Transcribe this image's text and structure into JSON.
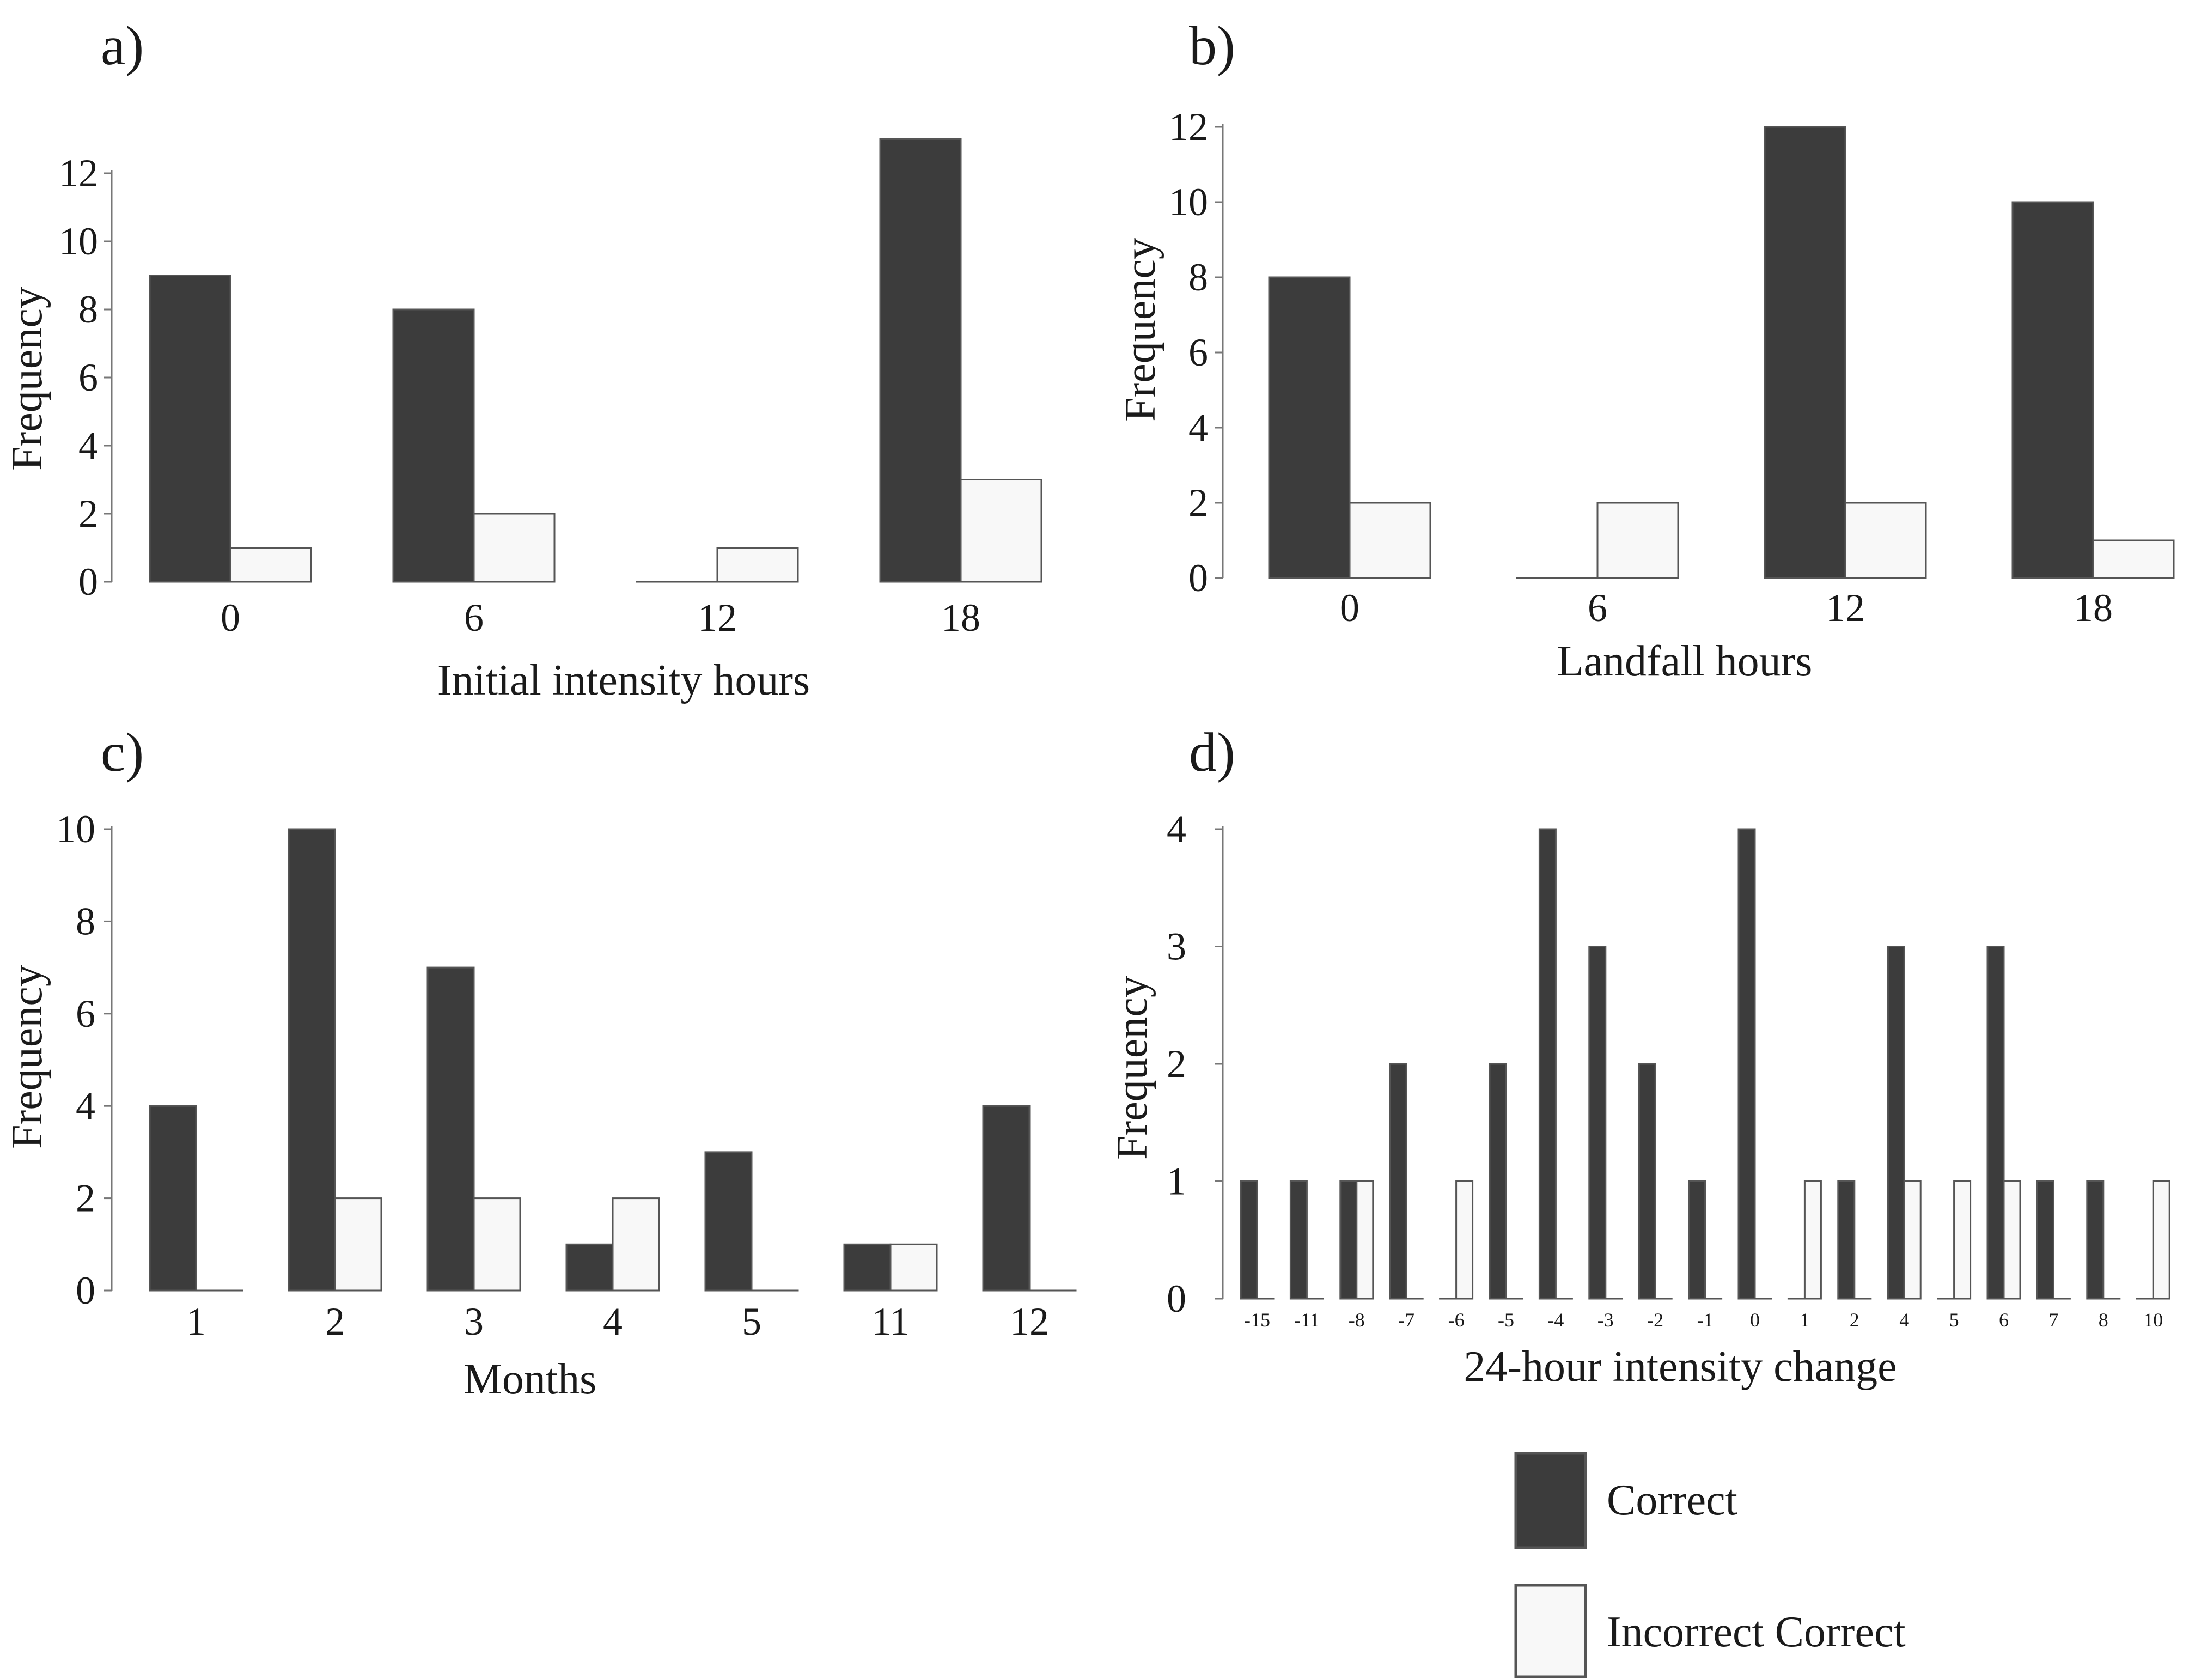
{
  "colors": {
    "correct": "#3c3c3c",
    "incorrect": "#f8f8f8",
    "stroke": "#555555"
  },
  "legend": {
    "items": [
      {
        "key": "correct",
        "label": "Correct"
      },
      {
        "key": "incorrect",
        "label": "Incorrect Correct"
      }
    ]
  },
  "chart_data": [
    {
      "id": "a",
      "panel_label": "a)",
      "type": "bar",
      "categories": [
        "0",
        "6",
        "12",
        "18"
      ],
      "series": [
        {
          "name": "Correct",
          "values": [
            9,
            8,
            0,
            13
          ]
        },
        {
          "name": "Incorrect Correct",
          "values": [
            1,
            2,
            1,
            3
          ]
        }
      ],
      "xlabel": "Initial intensity hours",
      "ylabel": "Frequency",
      "ylim": [
        0,
        12
      ],
      "yticks": [
        0,
        2,
        4,
        6,
        8,
        10,
        12
      ]
    },
    {
      "id": "b",
      "panel_label": "b)",
      "type": "bar",
      "categories": [
        "0",
        "6",
        "12",
        "18"
      ],
      "series": [
        {
          "name": "Correct",
          "values": [
            8,
            0,
            12,
            10
          ]
        },
        {
          "name": "Incorrect Correct",
          "values": [
            2,
            2,
            2,
            1
          ]
        }
      ],
      "xlabel": "Landfall hours",
      "ylabel": "Frequency",
      "ylim": [
        0,
        12
      ],
      "yticks": [
        0,
        2,
        4,
        6,
        8,
        10,
        12
      ]
    },
    {
      "id": "c",
      "panel_label": "c)",
      "type": "bar",
      "categories": [
        "1",
        "2",
        "3",
        "4",
        "5",
        "11",
        "12"
      ],
      "series": [
        {
          "name": "Correct",
          "values": [
            4,
            10,
            7,
            1,
            3,
            1,
            4
          ]
        },
        {
          "name": "Incorrect Correct",
          "values": [
            0,
            2,
            2,
            2,
            0,
            1,
            0
          ]
        }
      ],
      "xlabel": "Months",
      "ylabel": "Frequency",
      "ylim": [
        0,
        10
      ],
      "yticks": [
        0,
        2,
        4,
        6,
        8,
        10
      ]
    },
    {
      "id": "d",
      "panel_label": "d)",
      "type": "bar",
      "categories": [
        "-15",
        "-11",
        "-8",
        "-7",
        "-6",
        "-5",
        "-4",
        "-3",
        "-2",
        "-1",
        "0",
        "1",
        "2",
        "4",
        "5",
        "6",
        "7",
        "8",
        "10"
      ],
      "series": [
        {
          "name": "Correct",
          "values": [
            1,
            1,
            1,
            2,
            0,
            2,
            4,
            3,
            2,
            1,
            4,
            0,
            1,
            3,
            0,
            3,
            1,
            1,
            0
          ]
        },
        {
          "name": "Incorrect Correct",
          "values": [
            0,
            0,
            1,
            0,
            1,
            0,
            0,
            0,
            0,
            0,
            0,
            1,
            0,
            1,
            1,
            1,
            0,
            0,
            1
          ]
        }
      ],
      "xlabel": "24-hour intensity change",
      "ylabel": "Frequency",
      "ylim": [
        0,
        4
      ],
      "yticks": [
        0,
        1,
        2,
        3,
        4
      ]
    }
  ]
}
